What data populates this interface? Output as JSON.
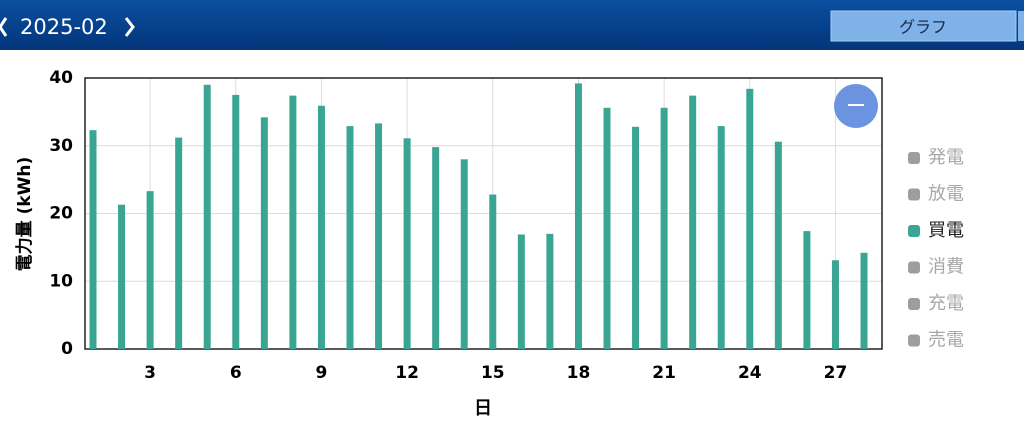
{
  "header": {
    "month": "2025-02",
    "view_button": "グラフ"
  },
  "chart_data": {
    "type": "bar",
    "x_label": "日",
    "y_label": "電力量 (kWh)",
    "x": [
      1,
      2,
      3,
      4,
      5,
      6,
      7,
      8,
      9,
      10,
      11,
      12,
      13,
      14,
      15,
      16,
      17,
      18,
      19,
      20,
      21,
      22,
      23,
      24,
      25,
      26,
      27,
      28
    ],
    "series": [
      {
        "name": "買電",
        "color": "#3ba593",
        "values": [
          32.3,
          21.3,
          23.3,
          31.2,
          39.0,
          37.5,
          34.2,
          37.4,
          35.9,
          32.9,
          33.3,
          31.1,
          29.8,
          28.0,
          22.8,
          16.9,
          17.0,
          39.2,
          35.6,
          32.8,
          35.6,
          37.4,
          32.9,
          38.4,
          30.6,
          17.4,
          13.1,
          14.2
        ]
      }
    ],
    "legend": [
      "発電",
      "放電",
      "買電",
      "消費",
      "充電",
      "売電"
    ],
    "inactive_color": "#9e9e9e",
    "xlim": [
      0.72,
      28.63
    ],
    "xticks": [
      3,
      6,
      9,
      12,
      15,
      18,
      21,
      24,
      27
    ],
    "ylim": [
      0,
      40
    ],
    "yticks": [
      0,
      10,
      20,
      30,
      40
    ],
    "grid": true
  }
}
